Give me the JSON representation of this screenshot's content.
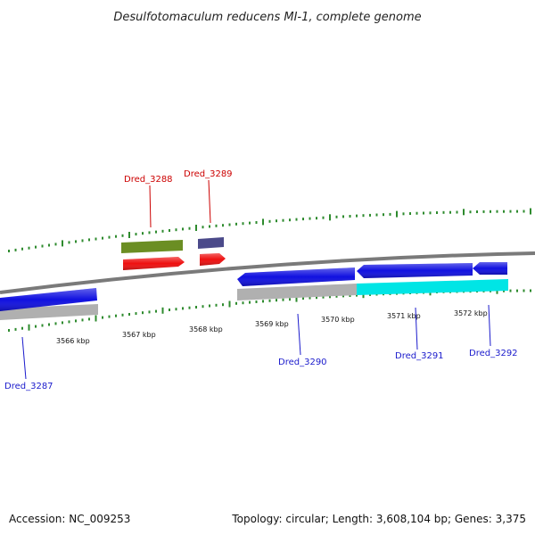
{
  "title": "Desulfotomaculum reducens MI-1, complete genome",
  "footer": {
    "accession": "Accession: NC_009253",
    "summary": "Topology: circular; Length: 3,608,104 bp; Genes: 3,375"
  },
  "colors": {
    "backbone": "#7a7a7a",
    "tick": "#2e8b2e",
    "forward_label": "#cc0000",
    "reverse_label": "#1a1acc"
  },
  "scale_ticks": [
    "3566 kbp",
    "3567 kbp",
    "3568 kbp",
    "3569 kbp",
    "3570 kbp",
    "3571 kbp",
    "3572 kbp"
  ],
  "genes": [
    {
      "id": "Dred_3287",
      "strand": "reverse",
      "color": "#1010e0"
    },
    {
      "id": "Dred_3288",
      "strand": "forward",
      "color": "#ee1010"
    },
    {
      "id": "Dred_3289",
      "strand": "forward",
      "color": "#ee1010"
    },
    {
      "id": "Dred_3290",
      "strand": "reverse",
      "color": "#1010e0"
    },
    {
      "id": "Dred_3291",
      "strand": "reverse",
      "color": "#1010e0"
    },
    {
      "id": "Dred_3292",
      "strand": "reverse",
      "color": "#1010e0"
    }
  ],
  "annotations": [
    {
      "color": "#6b8e23"
    },
    {
      "color": "#4b4a8a"
    },
    {
      "color": "#b0b0b0"
    },
    {
      "color": "#b0b0b0"
    },
    {
      "color": "#00e5e5"
    }
  ]
}
